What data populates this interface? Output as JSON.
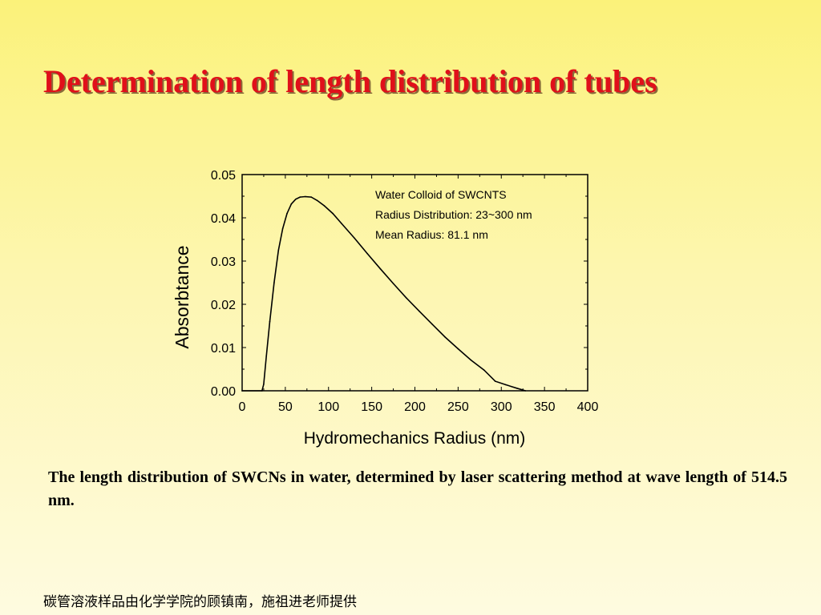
{
  "slide": {
    "title": "Determination of length distribution of tubes",
    "caption": "The length distribution of SWCNs in water, determined by laser scattering method at wave length of 514.5 nm.",
    "footnote": "碳管溶液样品由化学学院的顾镇南，施祖进老师提供"
  },
  "colors": {
    "title": "#e0101a",
    "title_shadow": "#8a6a3a",
    "curve": "#000000"
  },
  "chart_data": {
    "type": "line",
    "xlabel": "Hydromechanics Radius (nm)",
    "ylabel": "Absorbtance",
    "xlim": [
      0,
      400
    ],
    "ylim": [
      0,
      0.05
    ],
    "x_ticks": [
      "0",
      "50",
      "100",
      "150",
      "200",
      "250",
      "300",
      "350",
      "400"
    ],
    "y_ticks": [
      "0.00",
      "0.01",
      "0.02",
      "0.03",
      "0.04",
      "0.05"
    ],
    "annotations": [
      "Water Colloid of SWCNTS",
      "Radius Distribution: 23~300 nm",
      "Mean Radius: 81.1 nm"
    ],
    "grid": false,
    "series": [
      {
        "x": [
          0,
          23,
          25,
          28,
          32,
          37,
          42,
          47,
          52,
          57,
          62,
          67,
          73,
          80,
          87,
          95,
          105,
          115,
          130,
          145,
          160,
          175,
          190,
          205,
          220,
          235,
          250,
          265,
          280,
          293,
          305,
          318,
          328
        ],
        "y": [
          0.0,
          0.0,
          0.0015,
          0.008,
          0.016,
          0.025,
          0.0325,
          0.0375,
          0.041,
          0.0432,
          0.0443,
          0.0448,
          0.0449,
          0.0448,
          0.044,
          0.0428,
          0.041,
          0.0387,
          0.0353,
          0.0317,
          0.0282,
          0.0248,
          0.0215,
          0.0184,
          0.0154,
          0.0124,
          0.0097,
          0.0071,
          0.0048,
          0.0022,
          0.0014,
          0.0006,
          0.0
        ]
      }
    ]
  }
}
